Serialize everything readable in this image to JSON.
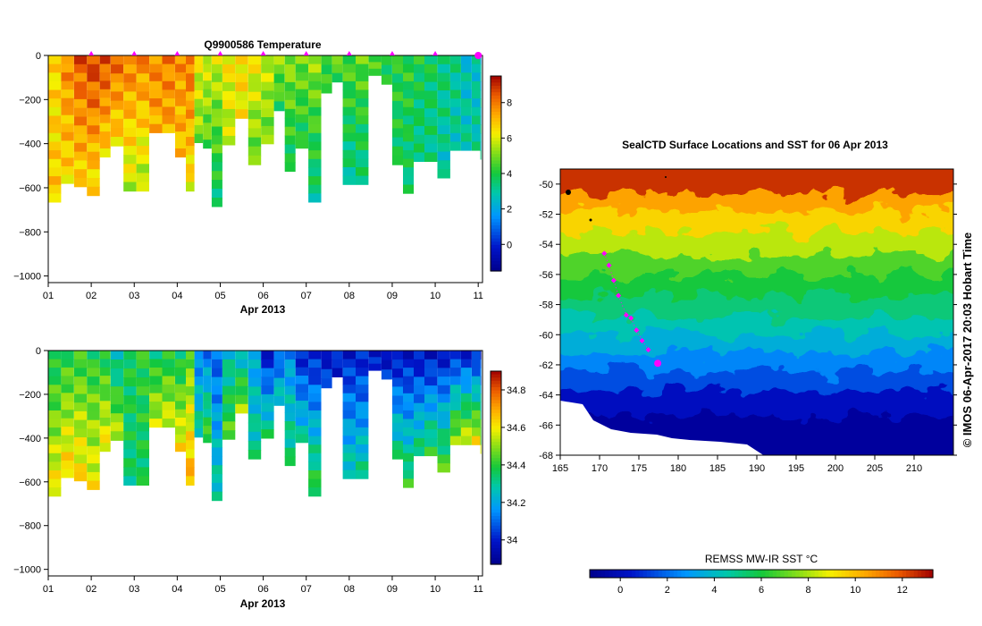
{
  "chart_data": [
    {
      "type": "heatmap",
      "title": "Q9900586  Temperature",
      "xlabel": "Apr 2013",
      "x_tick_labels": [
        "01",
        "02",
        "03",
        "04",
        "05",
        "06",
        "07",
        "08",
        "09",
        "10",
        "11"
      ],
      "y_tick_labels": [
        "0",
        "−200",
        "−400",
        "−600",
        "−800",
        "−1000"
      ],
      "ylim": [
        -1030,
        0
      ],
      "xlim": [
        1,
        11.1
      ],
      "colorbar": {
        "ticks": [
          "0",
          "2",
          "4",
          "6",
          "8"
        ],
        "range": [
          -1.5,
          9.5
        ]
      },
      "profiles": [
        {
          "day": 1.0,
          "depth": 665,
          "top": 6.5,
          "bot": 6.8
        },
        {
          "day": 1.3,
          "depth": 580,
          "top": 7.8,
          "bot": 6.5
        },
        {
          "day": 1.6,
          "depth": 595,
          "top": 8.5,
          "bot": 6.6
        },
        {
          "day": 1.9,
          "depth": 635,
          "top": 8.8,
          "bot": 6.4
        },
        {
          "day": 2.2,
          "depth": 460,
          "top": 8.6,
          "bot": 6.6
        },
        {
          "day": 2.45,
          "depth": 410,
          "top": 8.2,
          "bot": 6.5
        },
        {
          "day": 2.75,
          "depth": 615,
          "top": 8.0,
          "bot": 5.6
        },
        {
          "day": 3.05,
          "depth": 615,
          "top": 7.9,
          "bot": 5.4
        },
        {
          "day": 3.35,
          "depth": 350,
          "top": 7.8,
          "bot": 7.2
        },
        {
          "day": 3.65,
          "depth": 350,
          "top": 7.9,
          "bot": 7.3
        },
        {
          "day": 3.95,
          "depth": 460,
          "top": 7.7,
          "bot": 6.9
        },
        {
          "day": 4.2,
          "depth": 615,
          "top": 8.2,
          "bot": 6.2
        },
        {
          "day": 4.4,
          "depth": 395,
          "top": 6.2,
          "bot": 5.0
        },
        {
          "day": 4.6,
          "depth": 420,
          "top": 6.0,
          "bot": 4.5
        },
        {
          "day": 4.8,
          "depth": 685,
          "top": 5.9,
          "bot": 3.4
        },
        {
          "day": 5.05,
          "depth": 405,
          "top": 6.4,
          "bot": 5.6
        },
        {
          "day": 5.35,
          "depth": 285,
          "top": 6.6,
          "bot": 6.2
        },
        {
          "day": 5.65,
          "depth": 495,
          "top": 6.3,
          "bot": 4.7
        },
        {
          "day": 5.95,
          "depth": 400,
          "top": 5.8,
          "bot": 4.9
        },
        {
          "day": 6.25,
          "depth": 250,
          "top": 5.2,
          "bot": 4.0
        },
        {
          "day": 6.5,
          "depth": 525,
          "top": 5.3,
          "bot": 3.6
        },
        {
          "day": 6.75,
          "depth": 420,
          "top": 5.0,
          "bot": 3.8
        },
        {
          "day": 7.05,
          "depth": 665,
          "top": 5.3,
          "bot": 3.2
        },
        {
          "day": 7.35,
          "depth": 170,
          "top": 4.6,
          "bot": 3.9
        },
        {
          "day": 7.6,
          "depth": 120,
          "top": 4.7,
          "bot": 4.3
        },
        {
          "day": 7.85,
          "depth": 585,
          "top": 4.6,
          "bot": 3.1
        },
        {
          "day": 8.15,
          "depth": 585,
          "top": 4.8,
          "bot": 3.2
        },
        {
          "day": 8.45,
          "depth": 90,
          "top": 4.6,
          "bot": 4.2
        },
        {
          "day": 8.75,
          "depth": 130,
          "top": 4.2,
          "bot": 3.9
        },
        {
          "day": 9.0,
          "depth": 495,
          "top": 4.1,
          "bot": 3.7
        },
        {
          "day": 9.25,
          "depth": 625,
          "top": 4.2,
          "bot": 3.4
        },
        {
          "day": 9.5,
          "depth": 480,
          "top": 3.9,
          "bot": 3.3
        },
        {
          "day": 9.75,
          "depth": 480,
          "top": 3.8,
          "bot": 3.2
        },
        {
          "day": 10.05,
          "depth": 555,
          "top": 3.5,
          "bot": 2.8
        },
        {
          "day": 10.35,
          "depth": 430,
          "top": 3.2,
          "bot": 2.9
        },
        {
          "day": 10.6,
          "depth": 430,
          "top": 2.5,
          "bot": 3.0
        },
        {
          "day": 10.85,
          "depth": 430,
          "top": 2.7,
          "bot": 3.0
        },
        {
          "day": 11.05,
          "depth": 470,
          "top": 2.5,
          "bot": 2.9
        }
      ],
      "surface_markers": [
        2.0,
        3.0,
        4.0,
        5.0,
        6.0,
        7.0,
        8.0,
        9.0,
        10.0,
        11.0
      ]
    },
    {
      "type": "heatmap",
      "title": "",
      "xlabel": "Apr 2013",
      "x_tick_labels": [
        "01",
        "02",
        "03",
        "04",
        "05",
        "06",
        "07",
        "08",
        "09",
        "10",
        "11"
      ],
      "y_tick_labels": [
        "0",
        "−200",
        "−400",
        "−600",
        "−800",
        "−1000"
      ],
      "ylim": [
        -1030,
        0
      ],
      "xlim": [
        1,
        11.1
      ],
      "colorbar": {
        "ticks": [
          "34",
          "34.2",
          "34.4",
          "34.6",
          "34.8"
        ],
        "range": [
          33.87,
          34.9
        ]
      },
      "profiles": [
        {
          "day": 1.0,
          "depth": 665,
          "top": 34.35,
          "bot": 34.62
        },
        {
          "day": 1.3,
          "depth": 580,
          "top": 34.38,
          "bot": 34.65
        },
        {
          "day": 1.6,
          "depth": 595,
          "top": 34.4,
          "bot": 34.63
        },
        {
          "day": 1.9,
          "depth": 635,
          "top": 34.38,
          "bot": 34.6
        },
        {
          "day": 2.2,
          "depth": 460,
          "top": 34.36,
          "bot": 34.62
        },
        {
          "day": 2.45,
          "depth": 410,
          "top": 34.24,
          "bot": 34.56
        },
        {
          "day": 2.75,
          "depth": 615,
          "top": 34.38,
          "bot": 34.33
        },
        {
          "day": 3.05,
          "depth": 615,
          "top": 34.4,
          "bot": 34.35
        },
        {
          "day": 3.35,
          "depth": 350,
          "top": 34.34,
          "bot": 34.56
        },
        {
          "day": 3.65,
          "depth": 350,
          "top": 34.36,
          "bot": 34.58
        },
        {
          "day": 3.95,
          "depth": 460,
          "top": 34.33,
          "bot": 34.62
        },
        {
          "day": 4.2,
          "depth": 615,
          "top": 34.45,
          "bot": 34.7
        },
        {
          "day": 4.4,
          "depth": 395,
          "top": 34.12,
          "bot": 34.32
        },
        {
          "day": 4.6,
          "depth": 420,
          "top": 34.1,
          "bot": 34.45
        },
        {
          "day": 4.8,
          "depth": 685,
          "top": 34.08,
          "bot": 34.3
        },
        {
          "day": 5.05,
          "depth": 405,
          "top": 34.25,
          "bot": 34.45
        },
        {
          "day": 5.35,
          "depth": 285,
          "top": 34.22,
          "bot": 34.52
        },
        {
          "day": 5.65,
          "depth": 495,
          "top": 34.18,
          "bot": 34.32
        },
        {
          "day": 5.95,
          "depth": 400,
          "top": 33.98,
          "bot": 34.35
        },
        {
          "day": 6.25,
          "depth": 250,
          "top": 34.05,
          "bot": 34.3
        },
        {
          "day": 6.5,
          "depth": 525,
          "top": 34.15,
          "bot": 34.35
        },
        {
          "day": 6.75,
          "depth": 420,
          "top": 33.99,
          "bot": 34.3
        },
        {
          "day": 7.05,
          "depth": 665,
          "top": 33.99,
          "bot": 34.42
        },
        {
          "day": 7.35,
          "depth": 170,
          "top": 33.99,
          "bot": 34.05
        },
        {
          "day": 7.6,
          "depth": 120,
          "top": 33.99,
          "bot": 34.02
        },
        {
          "day": 7.85,
          "depth": 585,
          "top": 33.99,
          "bot": 34.3
        },
        {
          "day": 8.15,
          "depth": 585,
          "top": 33.99,
          "bot": 34.32
        },
        {
          "day": 8.45,
          "depth": 90,
          "top": 33.98,
          "bot": 34.0
        },
        {
          "day": 8.75,
          "depth": 130,
          "top": 33.97,
          "bot": 34.05
        },
        {
          "day": 9.0,
          "depth": 495,
          "top": 33.96,
          "bot": 34.35
        },
        {
          "day": 9.25,
          "depth": 625,
          "top": 33.97,
          "bot": 34.4
        },
        {
          "day": 9.5,
          "depth": 480,
          "top": 33.96,
          "bot": 34.35
        },
        {
          "day": 9.75,
          "depth": 480,
          "top": 33.96,
          "bot": 34.4
        },
        {
          "day": 10.05,
          "depth": 555,
          "top": 33.97,
          "bot": 34.45
        },
        {
          "day": 10.35,
          "depth": 430,
          "top": 33.98,
          "bot": 34.55
        },
        {
          "day": 10.6,
          "depth": 430,
          "top": 33.97,
          "bot": 34.6
        },
        {
          "day": 10.85,
          "depth": 430,
          "top": 33.98,
          "bot": 34.62
        },
        {
          "day": 11.05,
          "depth": 470,
          "top": 33.99,
          "bot": 34.55
        }
      ]
    },
    {
      "type": "heatmap",
      "title": "SealCTD Surface Locations and SST for 06 Apr 2013",
      "xlabel": "",
      "ylabel": "",
      "xlim": [
        165,
        215
      ],
      "ylim": [
        -68,
        -49
      ],
      "x_tick_labels": [
        "165",
        "170",
        "175",
        "180",
        "185",
        "190",
        "195",
        "200",
        "205",
        "210"
      ],
      "y_tick_labels": [
        "-50",
        "-52",
        "-54",
        "-56",
        "-58",
        "-60",
        "-62",
        "-64",
        "-66",
        "-68"
      ],
      "side_label": "©  IMOS 06-Apr-2017 20:03 Hobart Time",
      "colorbar": {
        "label": "REMSS MW-IR SST °C",
        "ticks": [
          "0",
          "2",
          "4",
          "6",
          "8",
          "10",
          "12"
        ],
        "range": [
          -1.3,
          13.3
        ]
      },
      "sst_isotherms": [
        {
          "lat": -50.0,
          "sst": 12.5
        },
        {
          "lat": -51.2,
          "sst": 10.5
        },
        {
          "lat": -52.4,
          "sst": 9.5
        },
        {
          "lat": -53.8,
          "sst": 8.2
        },
        {
          "lat": -55.3,
          "sst": 6.8
        },
        {
          "lat": -56.6,
          "sst": 6.0
        },
        {
          "lat": -58.0,
          "sst": 5.2
        },
        {
          "lat": -59.4,
          "sst": 4.4
        },
        {
          "lat": -60.6,
          "sst": 3.6
        },
        {
          "lat": -61.8,
          "sst": 2.5
        },
        {
          "lat": -63.0,
          "sst": 1.5
        },
        {
          "lat": -64.3,
          "sst": 0.2
        },
        {
          "lat": -66.0,
          "sst": -0.8
        }
      ],
      "track": [
        {
          "lon": 170.6,
          "lat": -54.6
        },
        {
          "lon": 171.2,
          "lat": -55.4
        },
        {
          "lon": 171.8,
          "lat": -56.4
        },
        {
          "lon": 172.4,
          "lat": -57.4
        },
        {
          "lon": 173.4,
          "lat": -58.7
        },
        {
          "lon": 174.0,
          "lat": -58.9
        },
        {
          "lon": 174.7,
          "lat": -59.7
        },
        {
          "lon": 175.4,
          "lat": -60.4
        },
        {
          "lon": 176.2,
          "lat": -61.0
        }
      ],
      "current_position": {
        "lon": 177.4,
        "lat": -61.9
      }
    }
  ]
}
